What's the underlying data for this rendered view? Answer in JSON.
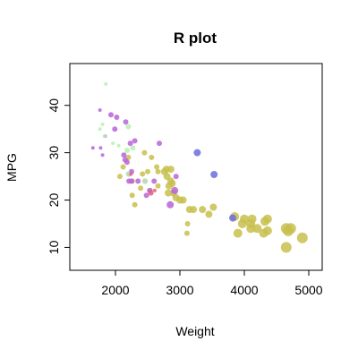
{
  "chart_data": {
    "type": "scatter",
    "title": "R plot",
    "xlabel": "Weight",
    "ylabel": "MPG",
    "xlim": [
      1500,
      5000
    ],
    "ylim": [
      8,
      46
    ],
    "xticks": [
      2000,
      3000,
      4000,
      5000
    ],
    "xtick_labels": [
      "2000",
      "3000",
      "4000",
      "5000"
    ],
    "yticks": [
      10,
      20,
      30,
      40
    ],
    "ytick_labels": [
      "10",
      "20",
      "30",
      "40"
    ],
    "grid": false,
    "legend": "none",
    "colors": {
      "olive": "#c8c04e",
      "violet": "#b864d8",
      "mint": "#b8f0b0",
      "blue": "#6c6ce0",
      "rose": "#e06080"
    },
    "series": [
      {
        "color": "olive",
        "points": [
          [
            4650,
            10,
            6
          ],
          [
            4900,
            12,
            6
          ],
          [
            4680,
            13.5,
            6
          ],
          [
            4720,
            14,
            6
          ],
          [
            4650,
            14,
            6
          ],
          [
            4300,
            13,
            5
          ],
          [
            4360,
            13.5,
            5
          ],
          [
            4200,
            14,
            5
          ],
          [
            4100,
            14,
            5
          ],
          [
            4100,
            15,
            5
          ],
          [
            4120,
            16,
            5
          ],
          [
            4320,
            15.5,
            5
          ],
          [
            4360,
            16,
            5
          ],
          [
            3900,
            13,
            5
          ],
          [
            3970,
            15,
            5
          ],
          [
            4000,
            16,
            5
          ],
          [
            3850,
            16.5,
            5
          ],
          [
            3450,
            17,
            4
          ],
          [
            3520,
            18.5,
            4
          ],
          [
            3350,
            18,
            4
          ],
          [
            3150,
            18,
            4
          ],
          [
            3210,
            18,
            4
          ],
          [
            3120,
            15,
            3
          ],
          [
            3110,
            13,
            3
          ],
          [
            3000,
            20,
            4
          ],
          [
            2940,
            20.5,
            4
          ],
          [
            2900,
            21.5,
            4
          ],
          [
            2820,
            21.5,
            4
          ],
          [
            2860,
            24,
            4
          ],
          [
            2800,
            25,
            4
          ],
          [
            2830,
            23,
            4
          ],
          [
            2880,
            23.5,
            4
          ],
          [
            2760,
            26,
            4
          ],
          [
            2790,
            26.5,
            4
          ],
          [
            2860,
            26.5,
            4
          ],
          [
            2660,
            26,
            3
          ],
          [
            2640,
            27,
            3
          ],
          [
            2500,
            26,
            3
          ],
          [
            2420,
            25.5,
            3
          ],
          [
            2560,
            29,
            3
          ],
          [
            2450,
            30,
            3
          ],
          [
            2120,
            27,
            3
          ],
          [
            2200,
            29,
            3
          ],
          [
            2260,
            21,
            3
          ],
          [
            2390,
            22.5,
            3
          ],
          [
            2300,
            19,
            3
          ],
          [
            2260,
            24,
            3
          ],
          [
            2540,
            22,
            3
          ],
          [
            2070,
            25,
            3
          ],
          [
            2660,
            23,
            3
          ],
          [
            3050,
            20,
            4
          ]
        ]
      },
      {
        "color": "violet",
        "points": [
          [
            1760,
            39,
            2
          ],
          [
            1930,
            38,
            3
          ],
          [
            2020,
            37.5,
            3
          ],
          [
            1990,
            35,
            3
          ],
          [
            2160,
            36.5,
            3
          ],
          [
            2230,
            32,
            3
          ],
          [
            2300,
            32.5,
            3
          ],
          [
            1840,
            33.5,
            2
          ],
          [
            1770,
            31,
            2
          ],
          [
            1650,
            31,
            2
          ],
          [
            1800,
            29.5,
            2
          ],
          [
            2130,
            29.5,
            3
          ],
          [
            2180,
            28,
            3
          ],
          [
            2150,
            28.5,
            3
          ],
          [
            2250,
            26,
            3
          ],
          [
            2210,
            25.5,
            3
          ],
          [
            2250,
            24,
            3
          ],
          [
            2350,
            24,
            3
          ],
          [
            2460,
            24,
            3
          ],
          [
            2600,
            24,
            3
          ],
          [
            2680,
            32,
            3
          ],
          [
            2940,
            25,
            3
          ],
          [
            2920,
            22,
            4
          ],
          [
            2850,
            19,
            4
          ],
          [
            2480,
            21,
            3
          ],
          [
            2530,
            22,
            3
          ],
          [
            2210,
            24,
            3
          ]
        ]
      },
      {
        "color": "mint",
        "points": [
          [
            1850,
            44.5,
            2
          ],
          [
            1800,
            36,
            2
          ],
          [
            1760,
            35,
            2
          ],
          [
            1830,
            33.5,
            2
          ],
          [
            1960,
            32,
            2
          ],
          [
            2050,
            31.5,
            2
          ],
          [
            2200,
            35.5,
            3
          ],
          [
            2270,
            31,
            3
          ],
          [
            2180,
            30.5,
            3
          ],
          [
            2200,
            25.5,
            3
          ],
          [
            2460,
            24,
            3
          ]
        ]
      },
      {
        "color": "blue",
        "points": [
          [
            3270,
            30,
            4
          ],
          [
            3530,
            25.4,
            4
          ],
          [
            3820,
            16.2,
            4
          ]
        ]
      },
      {
        "color": "rose",
        "points": [
          [
            2550,
            21.5,
            3
          ],
          [
            2240,
            25.5,
            2
          ],
          [
            2610,
            22,
            2
          ]
        ]
      }
    ]
  }
}
